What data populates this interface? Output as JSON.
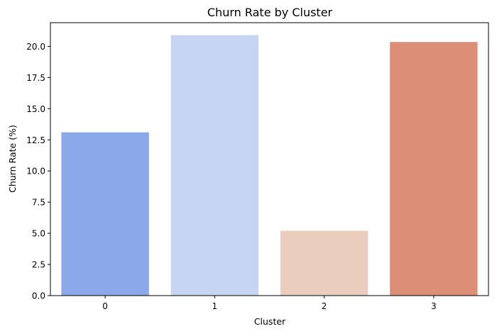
{
  "chart_data": {
    "type": "bar",
    "title": "Churn Rate by Cluster",
    "xlabel": "Cluster",
    "ylabel": "Churn Rate (%)",
    "categories": [
      "0",
      "1",
      "2",
      "3"
    ],
    "values": [
      13.1,
      20.9,
      5.2,
      20.35
    ],
    "colors": [
      "#8aa8ea",
      "#c6d5f1",
      "#eacdbd",
      "#dc8e77"
    ],
    "ylim": [
      0,
      21.9
    ],
    "yticks": [
      0.0,
      2.5,
      5.0,
      7.5,
      10.0,
      12.5,
      15.0,
      17.5,
      20.0
    ],
    "ytick_labels": [
      "0.0",
      "2.5",
      "5.0",
      "7.5",
      "10.0",
      "12.5",
      "15.0",
      "17.5",
      "20.0"
    ],
    "grid": false,
    "legend": "none"
  }
}
